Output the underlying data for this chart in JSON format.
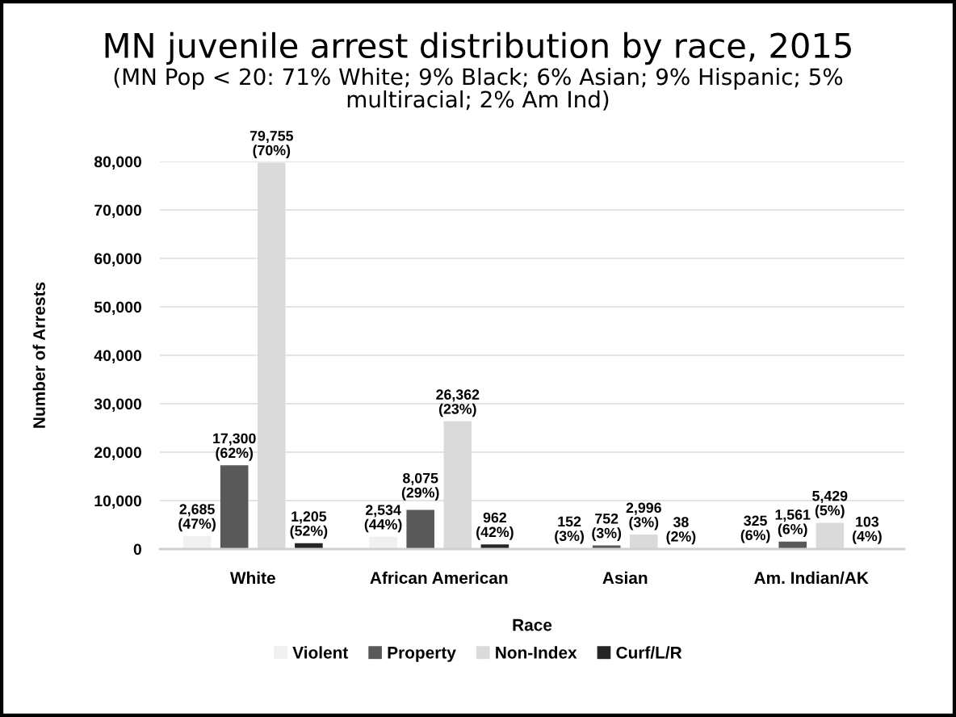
{
  "chart_data": {
    "type": "bar",
    "title": "MN juvenile arrest distribution by race, 2015",
    "subtitle": "(MN Pop < 20: 71% White; 9% Black; 6% Asian; 9% Hispanic; 5% multiracial; 2% Am Ind)",
    "xlabel": "Race",
    "ylabel": "Number of Arrests",
    "categories": [
      "White",
      "African American",
      "Asian",
      "Am. Indian/AK"
    ],
    "series": [
      {
        "name": "Violent",
        "color": "#f0f0f0",
        "values": [
          2685,
          2534,
          152,
          325
        ],
        "value_labels": [
          "2,685\n(47%)",
          "2,534\n(44%)",
          "152\n(3%)",
          "325\n(6%)"
        ]
      },
      {
        "name": "Property",
        "color": "#595959",
        "values": [
          17300,
          8075,
          752,
          1561
        ],
        "value_labels": [
          "17,300\n(62%)",
          "8,075\n(29%)",
          "752\n(3%)",
          "1,561\n(6%)"
        ]
      },
      {
        "name": "Non-Index",
        "color": "#dadada",
        "values": [
          79755,
          26362,
          2996,
          5429
        ],
        "value_labels": [
          "79,755\n(70%)",
          "26,362\n(23%)",
          "2,996\n(3%)",
          "5,429\n(5%)"
        ]
      },
      {
        "name": "Curf/L/R",
        "color": "#262626",
        "values": [
          1205,
          962,
          38,
          103
        ],
        "value_labels": [
          "1,205\n(52%)",
          "962\n(42%)",
          "38\n(2%)",
          "103\n(4%)"
        ]
      }
    ],
    "ylim": [
      0,
      80000
    ],
    "yticks": [
      0,
      {
        "value": 10000,
        "label": "10,000"
      },
      {
        "value": 20000,
        "label": "20,000"
      },
      {
        "value": 30000,
        "label": "30,000"
      },
      {
        "value": 40000,
        "label": "40,000"
      },
      {
        "value": 50000,
        "label": "50,000"
      },
      {
        "value": 60000,
        "label": "60,000"
      },
      {
        "value": 70000,
        "label": "70,000"
      },
      {
        "value": 80000,
        "label": "80,000"
      }
    ],
    "grid": "y",
    "legend": "bottom"
  }
}
